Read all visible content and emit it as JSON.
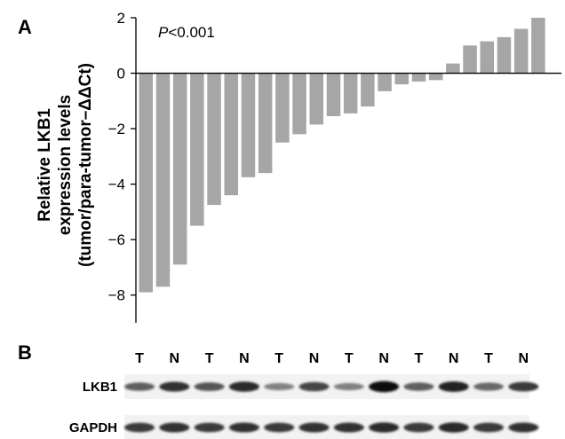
{
  "panel_a_label": "A",
  "panel_b_label": "B",
  "chart_data": {
    "type": "bar",
    "title": "",
    "annotation_italic": "P",
    "annotation_rest": "<0.001",
    "ylabel_lines": [
      "Relative LKB1",
      "expression levels",
      "(tumor/para-tumor–ΔΔCt)"
    ],
    "ylim": [
      -9,
      2
    ],
    "yticks": [
      2,
      0,
      -2,
      -4,
      -6,
      -8
    ],
    "ytick_labels": [
      "2",
      "0",
      "−2",
      "−4",
      "−6",
      "−8"
    ],
    "values": [
      -7.9,
      -7.7,
      -6.9,
      -5.5,
      -4.75,
      -4.4,
      -3.75,
      -3.6,
      -2.5,
      -2.2,
      -1.85,
      -1.55,
      -1.45,
      -1.2,
      -0.65,
      -0.4,
      -0.3,
      -0.25,
      0.35,
      1.0,
      1.15,
      1.3,
      1.6,
      2.0
    ],
    "bar_color": "#a6a6a6",
    "grid": false
  },
  "blot": {
    "lane_labels": [
      "T",
      "N",
      "T",
      "N",
      "T",
      "N",
      "T",
      "N",
      "T",
      "N",
      "T",
      "N"
    ],
    "rows": [
      {
        "label": "LKB1",
        "intensities": [
          0.55,
          0.8,
          0.6,
          0.85,
          0.35,
          0.7,
          0.35,
          1.0,
          0.55,
          0.9,
          0.5,
          0.75
        ]
      },
      {
        "label": "GAPDH",
        "intensities": [
          0.75,
          0.8,
          0.75,
          0.8,
          0.75,
          0.8,
          0.8,
          0.85,
          0.75,
          0.85,
          0.75,
          0.8
        ]
      }
    ]
  }
}
